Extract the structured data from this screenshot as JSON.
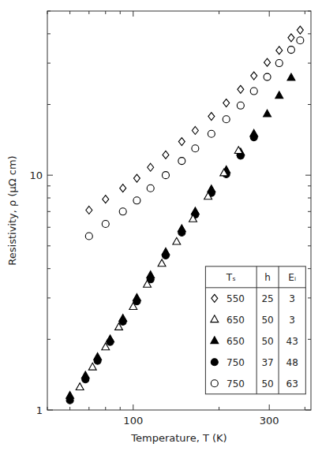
{
  "chart_data": {
    "type": "scatter",
    "xlabel": "Temperature, T (K)",
    "ylabel": "Resistivity, ρ (μΩ cm)",
    "log": true,
    "grid": false,
    "xlim": [
      50,
      420
    ],
    "ylim": [
      1.0,
      50
    ],
    "xticks": [
      100,
      300
    ],
    "yticks": [
      1,
      10
    ],
    "series": [
      {
        "marker": "diamond-open",
        "x": [
          70,
          80,
          92,
          103,
          115,
          130,
          148,
          165,
          188,
          212,
          238,
          265,
          295,
          325,
          358,
          385
        ],
        "values": [
          7.1,
          7.9,
          8.8,
          9.7,
          10.8,
          12.2,
          13.9,
          15.5,
          17.8,
          20.3,
          23.2,
          26.5,
          30.2,
          34.0,
          38.5,
          41.5
        ]
      },
      {
        "marker": "circle-open",
        "x": [
          70,
          80,
          92,
          103,
          115,
          130,
          148,
          165,
          188,
          212,
          238,
          265,
          295,
          325,
          358,
          385
        ],
        "values": [
          5.5,
          6.2,
          7.0,
          7.8,
          8.8,
          10.0,
          11.5,
          13.0,
          15.0,
          17.3,
          19.8,
          22.8,
          26.2,
          30.0,
          34.2,
          37.5
        ]
      },
      {
        "marker": "triangle-filled",
        "x": [
          60,
          68,
          75,
          83,
          92,
          103,
          115,
          130,
          148,
          165,
          188,
          212,
          238,
          265,
          295,
          325,
          358
        ],
        "values": [
          1.15,
          1.4,
          1.68,
          2.0,
          2.45,
          3.0,
          3.75,
          4.7,
          5.9,
          7.0,
          8.7,
          10.5,
          12.5,
          15.0,
          18.2,
          21.8,
          26.0
        ]
      },
      {
        "marker": "circle-filled",
        "x": [
          60,
          68,
          75,
          83,
          92,
          103,
          115,
          130,
          148,
          165,
          188,
          212,
          238,
          265
        ],
        "values": [
          1.1,
          1.35,
          1.62,
          1.95,
          2.38,
          2.9,
          3.6,
          4.55,
          5.7,
          6.8,
          8.4,
          10.1,
          12.1,
          14.5
        ]
      },
      {
        "marker": "triangle-open",
        "x": [
          65,
          72,
          80,
          89,
          100,
          112,
          126,
          142,
          162,
          183,
          208,
          234
        ],
        "values": [
          1.25,
          1.52,
          1.85,
          2.25,
          2.75,
          3.42,
          4.2,
          5.2,
          6.5,
          8.1,
          10.2,
          12.7
        ]
      }
    ],
    "legend_table": {
      "headers": [
        "Tₛ",
        "h",
        "Eᵢ"
      ],
      "rows": [
        {
          "marker": "diamond-open",
          "cells": [
            550,
            25,
            3
          ]
        },
        {
          "marker": "triangle-open",
          "cells": [
            650,
            50,
            3
          ]
        },
        {
          "marker": "triangle-filled",
          "cells": [
            650,
            50,
            43
          ]
        },
        {
          "marker": "circle-filled",
          "cells": [
            750,
            37,
            48
          ]
        },
        {
          "marker": "circle-open",
          "cells": [
            750,
            50,
            63
          ]
        }
      ]
    }
  }
}
